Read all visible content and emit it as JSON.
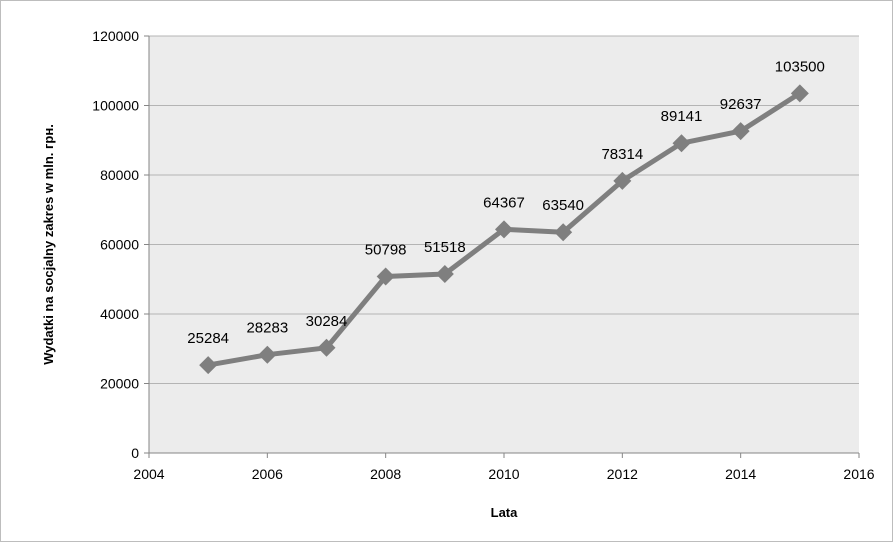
{
  "chart_data": {
    "type": "line",
    "title": "",
    "xlabel": "Lata",
    "ylabel": "Wydatki na socjalny zakres w mln. грн.",
    "xlim": [
      2004,
      2016
    ],
    "ylim": [
      0,
      120000
    ],
    "x_ticks": [
      2004,
      2006,
      2008,
      2010,
      2012,
      2014,
      2016
    ],
    "y_ticks": [
      0,
      20000,
      40000,
      60000,
      80000,
      100000,
      120000
    ],
    "grid": "horizontal",
    "legend": "none",
    "series": [
      {
        "color": "#7f7f7f",
        "marker": "diamond",
        "points": [
          {
            "x": 2005,
            "y": 25284,
            "label": "25284"
          },
          {
            "x": 2006,
            "y": 28283,
            "label": "28283"
          },
          {
            "x": 2007,
            "y": 30284,
            "label": "30284"
          },
          {
            "x": 2008,
            "y": 50798,
            "label": "50798"
          },
          {
            "x": 2009,
            "y": 51518,
            "label": "51518"
          },
          {
            "x": 2010,
            "y": 64367,
            "label": "64367"
          },
          {
            "x": 2011,
            "y": 63540,
            "label": "63540"
          },
          {
            "x": 2012,
            "y": 78314,
            "label": "78314"
          },
          {
            "x": 2013,
            "y": 89141,
            "label": "89141"
          },
          {
            "x": 2014,
            "y": 92637,
            "label": "92637"
          },
          {
            "x": 2015,
            "y": 103500,
            "label": "103500"
          }
        ]
      }
    ],
    "colors": {
      "plot_background": "#ececec",
      "gridline": "#b4b4b4",
      "axis": "#868686",
      "series": "#7f7f7f"
    }
  }
}
